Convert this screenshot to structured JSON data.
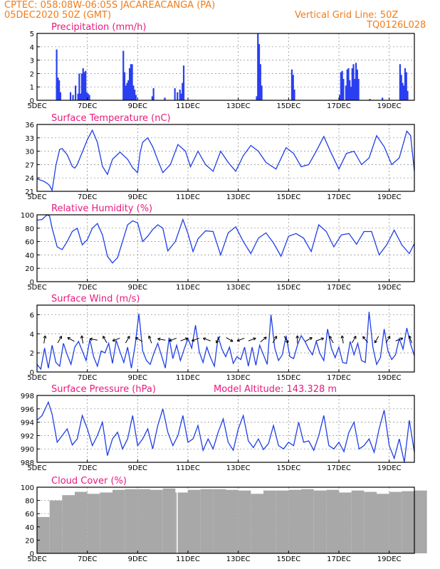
{
  "header": {
    "left_line1": "CPTEC:   058:08W-06:05S   JACAREACANGA (PA)",
    "left_line2": "05DEC2020 50Z (GMT)",
    "right_line1": "Vertical Grid Line: 50Z",
    "right_line2": "TQ0126L028"
  },
  "colors": {
    "header": "#f07c1a",
    "title": "#e8197d",
    "line": "#1f3fe6",
    "bar": "#2a3ff0",
    "cloud": "#a8a8a8"
  },
  "x_axis": {
    "labels": [
      "5DEC",
      "7DEC",
      "9DEC",
      "11DEC",
      "13DEC",
      "15DEC",
      "17DEC",
      "19DEC"
    ],
    "label_days": [
      0,
      2,
      4,
      6,
      8,
      10,
      12,
      14
    ],
    "range_days": [
      0,
      15
    ]
  },
  "chart_data": [
    {
      "id": "precip",
      "type": "bar",
      "title": "Precipitation (mm/h)",
      "ylim": [
        0,
        5
      ],
      "yticks": [
        0,
        1,
        2,
        3,
        4,
        5
      ],
      "x": [
        0.75,
        0.8,
        0.85,
        0.9,
        1.3,
        1.4,
        1.5,
        1.6,
        1.65,
        1.7,
        1.75,
        1.8,
        1.85,
        1.9,
        1.95,
        2.0,
        2.05,
        3.4,
        3.45,
        3.5,
        3.55,
        3.6,
        3.65,
        3.7,
        3.75,
        3.8,
        3.85,
        3.9,
        4.55,
        4.6,
        5.05,
        5.45,
        5.55,
        5.65,
        5.7,
        5.75,
        5.8,
        8.7,
        8.75,
        8.8,
        8.85,
        8.9,
        10.1,
        10.15,
        10.2,
        12.0,
        12.05,
        12.1,
        12.15,
        12.25,
        12.3,
        12.35,
        12.4,
        12.45,
        12.5,
        12.55,
        12.6,
        12.65,
        12.7,
        12.75,
        13.2,
        13.7,
        14.4,
        14.45,
        14.5,
        14.55,
        14.6,
        14.65,
        14.7
      ],
      "values": [
        3.8,
        1.7,
        1.5,
        0.6,
        0.6,
        0.4,
        1.1,
        0.5,
        2.0,
        0.5,
        2.0,
        2.4,
        2.1,
        2.2,
        0.6,
        0.5,
        0.4,
        3.7,
        2.1,
        1.1,
        1.3,
        1.5,
        2.4,
        2.7,
        2.7,
        1.1,
        0.8,
        0.4,
        0.3,
        0.9,
        0.2,
        0.9,
        0.6,
        0.8,
        0.5,
        1.3,
        2.6,
        0.3,
        5.0,
        4.2,
        2.7,
        1.1,
        2.3,
        1.9,
        0.8,
        0.4,
        2.1,
        2.2,
        1.6,
        1.1,
        2.3,
        2.4,
        1.5,
        1.0,
        2.4,
        2.7,
        1.6,
        2.8,
        2.3,
        1.6,
        0.1,
        0.2,
        2.7,
        1.9,
        1.3,
        1.1,
        2.4,
        2.1,
        0.7
      ]
    },
    {
      "id": "temp",
      "type": "line",
      "title": "Surface Temperature (nC)",
      "ylim": [
        21,
        36
      ],
      "yticks": [
        21,
        24,
        27,
        30,
        33,
        36
      ],
      "x": [
        0,
        0.1,
        0.25,
        0.4,
        0.5,
        0.6,
        0.75,
        0.9,
        1.0,
        1.2,
        1.4,
        1.5,
        1.6,
        1.8,
        2.0,
        2.2,
        2.4,
        2.6,
        2.8,
        3.0,
        3.3,
        3.6,
        3.8,
        4.0,
        4.1,
        4.2,
        4.4,
        4.6,
        4.8,
        5.0,
        5.3,
        5.6,
        5.9,
        6.1,
        6.4,
        6.7,
        7.0,
        7.3,
        7.6,
        7.9,
        8.2,
        8.5,
        8.8,
        9.1,
        9.5,
        9.9,
        10.2,
        10.5,
        10.8,
        11.1,
        11.4,
        11.7,
        12.0,
        12.3,
        12.6,
        12.9,
        13.2,
        13.5,
        13.8,
        14.1,
        14.4,
        14.7,
        14.85,
        15.0
      ],
      "values": [
        23.8,
        23.6,
        23.3,
        22.8,
        22.3,
        21.2,
        26.8,
        30.4,
        30.6,
        29.2,
        26.6,
        26.2,
        27.0,
        29.8,
        32.6,
        34.7,
        32.0,
        26.6,
        24.8,
        28.2,
        29.8,
        28.2,
        26.3,
        25.2,
        29.8,
        32.0,
        33.0,
        31.0,
        28.0,
        25.2,
        27.0,
        31.5,
        30.0,
        26.5,
        30.0,
        27.0,
        25.5,
        30.0,
        27.5,
        25.5,
        29.0,
        31.3,
        30.0,
        27.5,
        26.0,
        30.8,
        29.5,
        26.5,
        27.0,
        30.0,
        33.3,
        29.5,
        26.0,
        29.5,
        30.0,
        27.0,
        28.5,
        33.5,
        31.0,
        27.0,
        28.5,
        34.5,
        33.5,
        25.5
      ]
    },
    {
      "id": "rh",
      "type": "line",
      "title": "Relative Humidity (%)",
      "ylim": [
        0,
        100
      ],
      "yticks": [
        0,
        20,
        40,
        60,
        80,
        100
      ],
      "x": [
        0,
        0.2,
        0.4,
        0.5,
        0.6,
        0.8,
        1.0,
        1.2,
        1.4,
        1.6,
        1.8,
        2.0,
        2.2,
        2.4,
        2.6,
        2.8,
        3.0,
        3.2,
        3.4,
        3.6,
        3.8,
        4.0,
        4.2,
        4.4,
        4.6,
        4.8,
        5.0,
        5.2,
        5.5,
        5.8,
        6.0,
        6.2,
        6.4,
        6.7,
        7.0,
        7.3,
        7.6,
        7.9,
        8.2,
        8.5,
        8.8,
        9.1,
        9.4,
        9.7,
        10.0,
        10.3,
        10.6,
        10.9,
        11.2,
        11.5,
        11.8,
        12.1,
        12.4,
        12.7,
        13.0,
        13.3,
        13.6,
        13.9,
        14.2,
        14.5,
        14.8,
        15.0
      ],
      "values": [
        92,
        93,
        100,
        98,
        80,
        52,
        48,
        60,
        75,
        80,
        55,
        63,
        80,
        87,
        70,
        38,
        28,
        36,
        60,
        85,
        91,
        88,
        60,
        68,
        78,
        85,
        80,
        46,
        60,
        93,
        72,
        45,
        64,
        76,
        75,
        40,
        73,
        82,
        60,
        42,
        65,
        73,
        58,
        38,
        68,
        72,
        65,
        45,
        85,
        75,
        52,
        70,
        72,
        56,
        75,
        75,
        40,
        55,
        77,
        55,
        42,
        57
      ]
    },
    {
      "id": "wind",
      "type": "line",
      "title": "Surface Wind (m/s)",
      "ylim": [
        0,
        7
      ],
      "yticks": [
        0,
        2,
        4,
        6
      ],
      "x": [
        0,
        0.15,
        0.3,
        0.45,
        0.6,
        0.75,
        0.9,
        1.05,
        1.2,
        1.35,
        1.5,
        1.65,
        1.8,
        1.95,
        2.1,
        2.25,
        2.4,
        2.55,
        2.7,
        2.85,
        3.0,
        3.15,
        3.3,
        3.45,
        3.6,
        3.75,
        3.9,
        4.05,
        4.2,
        4.35,
        4.5,
        4.65,
        4.8,
        4.95,
        5.1,
        5.25,
        5.4,
        5.55,
        5.7,
        5.85,
        6.0,
        6.15,
        6.3,
        6.45,
        6.6,
        6.75,
        6.9,
        7.05,
        7.2,
        7.35,
        7.5,
        7.65,
        7.8,
        7.95,
        8.1,
        8.25,
        8.4,
        8.55,
        8.7,
        8.85,
        9.0,
        9.15,
        9.3,
        9.45,
        9.6,
        9.75,
        9.9,
        10.05,
        10.2,
        10.35,
        10.5,
        10.65,
        10.8,
        10.95,
        11.1,
        11.25,
        11.4,
        11.55,
        11.7,
        11.85,
        12.0,
        12.15,
        12.3,
        12.45,
        12.6,
        12.75,
        12.9,
        13.05,
        13.2,
        13.35,
        13.5,
        13.65,
        13.8,
        13.95,
        14.1,
        14.25,
        14.4,
        14.55,
        14.7,
        14.85,
        15.0
      ],
      "values": [
        0.8,
        0.3,
        2.5,
        0.4,
        2.8,
        1.0,
        0.6,
        3.0,
        1.8,
        0.8,
        2.6,
        3.2,
        2.2,
        1.2,
        3.4,
        1.6,
        0.6,
        2.2,
        2.0,
        3.0,
        0.9,
        3.3,
        2.1,
        1.0,
        2.6,
        0.4,
        2.8,
        6.1,
        2.2,
        1.2,
        0.8,
        2.0,
        3.0,
        1.7,
        0.4,
        3.6,
        1.4,
        2.8,
        1.2,
        2.4,
        3.5,
        2.5,
        4.9,
        2.1,
        1.0,
        2.6,
        1.5,
        0.6,
        3.7,
        2.4,
        1.6,
        2.6,
        0.9,
        1.6,
        1.3,
        2.6,
        0.6,
        2.6,
        0.7,
        2.8,
        1.8,
        0.8,
        6.0,
        2.5,
        1.2,
        1.8,
        3.8,
        1.6,
        1.4,
        2.8,
        3.8,
        3.2,
        2.4,
        1.8,
        3.2,
        1.9,
        1.2,
        4.5,
        2.5,
        1.5,
        2.6,
        1.0,
        0.9,
        3.2,
        1.8,
        3.0,
        1.2,
        1.0,
        6.3,
        2.6,
        0.8,
        1.5,
        4.5,
        2.2,
        1.3,
        1.8,
        3.5,
        2.4,
        4.6,
        2.9,
        1.7
      ]
    },
    {
      "id": "pres",
      "type": "line",
      "title": "Surface Pressure (hPa)",
      "annotation": "Model Altitude: 143.328 m",
      "ylim": [
        988,
        998
      ],
      "yticks": [
        988,
        990,
        992,
        994,
        996,
        998
      ],
      "x": [
        0,
        0.2,
        0.45,
        0.6,
        0.8,
        1.0,
        1.2,
        1.4,
        1.6,
        1.8,
        2.0,
        2.2,
        2.4,
        2.6,
        2.8,
        3.0,
        3.2,
        3.4,
        3.6,
        3.8,
        4.0,
        4.2,
        4.4,
        4.6,
        4.8,
        5.0,
        5.2,
        5.4,
        5.6,
        5.8,
        6.0,
        6.2,
        6.4,
        6.6,
        6.8,
        7.0,
        7.2,
        7.4,
        7.6,
        7.8,
        8.0,
        8.2,
        8.4,
        8.6,
        8.8,
        9.0,
        9.2,
        9.4,
        9.6,
        9.8,
        10.0,
        10.2,
        10.4,
        10.6,
        10.8,
        11.0,
        11.2,
        11.4,
        11.6,
        11.8,
        12.0,
        12.2,
        12.4,
        12.6,
        12.8,
        13.0,
        13.2,
        13.4,
        13.6,
        13.8,
        14.0,
        14.2,
        14.4,
        14.6,
        14.8,
        15.0
      ],
      "values": [
        994.3,
        995.0,
        997.0,
        995.2,
        991.0,
        992.0,
        993.0,
        990.6,
        991.5,
        995.0,
        993.0,
        990.5,
        992.0,
        994.0,
        989.0,
        991.5,
        992.5,
        990.0,
        991.5,
        995.0,
        990.5,
        991.5,
        993.0,
        990.0,
        993.5,
        996.0,
        992.5,
        990.5,
        992.0,
        995.0,
        991.0,
        991.5,
        993.5,
        989.8,
        991.5,
        990.0,
        992.5,
        994.5,
        991.0,
        989.8,
        993.0,
        995.0,
        991.2,
        990.2,
        991.5,
        989.9,
        990.8,
        993.5,
        990.5,
        990.0,
        991.0,
        990.5,
        994.0,
        991.0,
        991.2,
        989.8,
        992.0,
        995.0,
        990.5,
        990.0,
        991.0,
        989.6,
        992.5,
        994.0,
        990.0,
        990.5,
        991.5,
        989.5,
        993.0,
        995.8,
        990.5,
        988.6,
        991.5,
        988.0,
        994.3,
        989.5
      ]
    },
    {
      "id": "cloud",
      "type": "bar",
      "title": "Cloud Cover (%)",
      "ylim": [
        0,
        100
      ],
      "yticks": [
        0,
        20,
        40,
        60,
        80,
        100
      ],
      "x": [
        0,
        0.5,
        1.0,
        1.5,
        2.0,
        2.5,
        3.0,
        3.5,
        4.0,
        4.5,
        5.0,
        5.5,
        6.0,
        6.5,
        7.0,
        7.5,
        8.0,
        8.5,
        9.0,
        9.5,
        10.0,
        10.5,
        11.0,
        11.5,
        12.0,
        12.5,
        13.0,
        13.5,
        14.0,
        14.5,
        15.0
      ],
      "values": [
        55,
        80,
        88,
        93,
        90,
        92,
        96,
        97,
        97,
        96,
        98,
        92,
        96,
        97,
        97,
        96,
        95,
        90,
        95,
        95,
        96,
        97,
        95,
        96,
        92,
        95,
        93,
        90,
        93,
        94,
        95
      ]
    }
  ],
  "wind_arrows": {
    "x": [
      0.3,
      0.9,
      1.35,
      1.8,
      2.25,
      2.7,
      3.15,
      3.6,
      4.05,
      4.5,
      4.95,
      5.4,
      5.85,
      6.3,
      6.75,
      7.2,
      7.65,
      8.1,
      8.55,
      9.0,
      9.45,
      9.9,
      10.35,
      10.8,
      11.25,
      11.7,
      12.15,
      12.6,
      13.05,
      13.5,
      13.95,
      14.4,
      14.85
    ],
    "dir_deg": [
      80,
      60,
      150,
      100,
      170,
      120,
      200,
      60,
      150,
      110,
      170,
      200,
      20,
      200,
      160,
      240,
      330,
      200,
      20,
      40,
      60,
      300,
      90,
      30,
      20,
      120,
      100,
      60,
      130,
      240,
      60,
      20,
      110
    ]
  }
}
